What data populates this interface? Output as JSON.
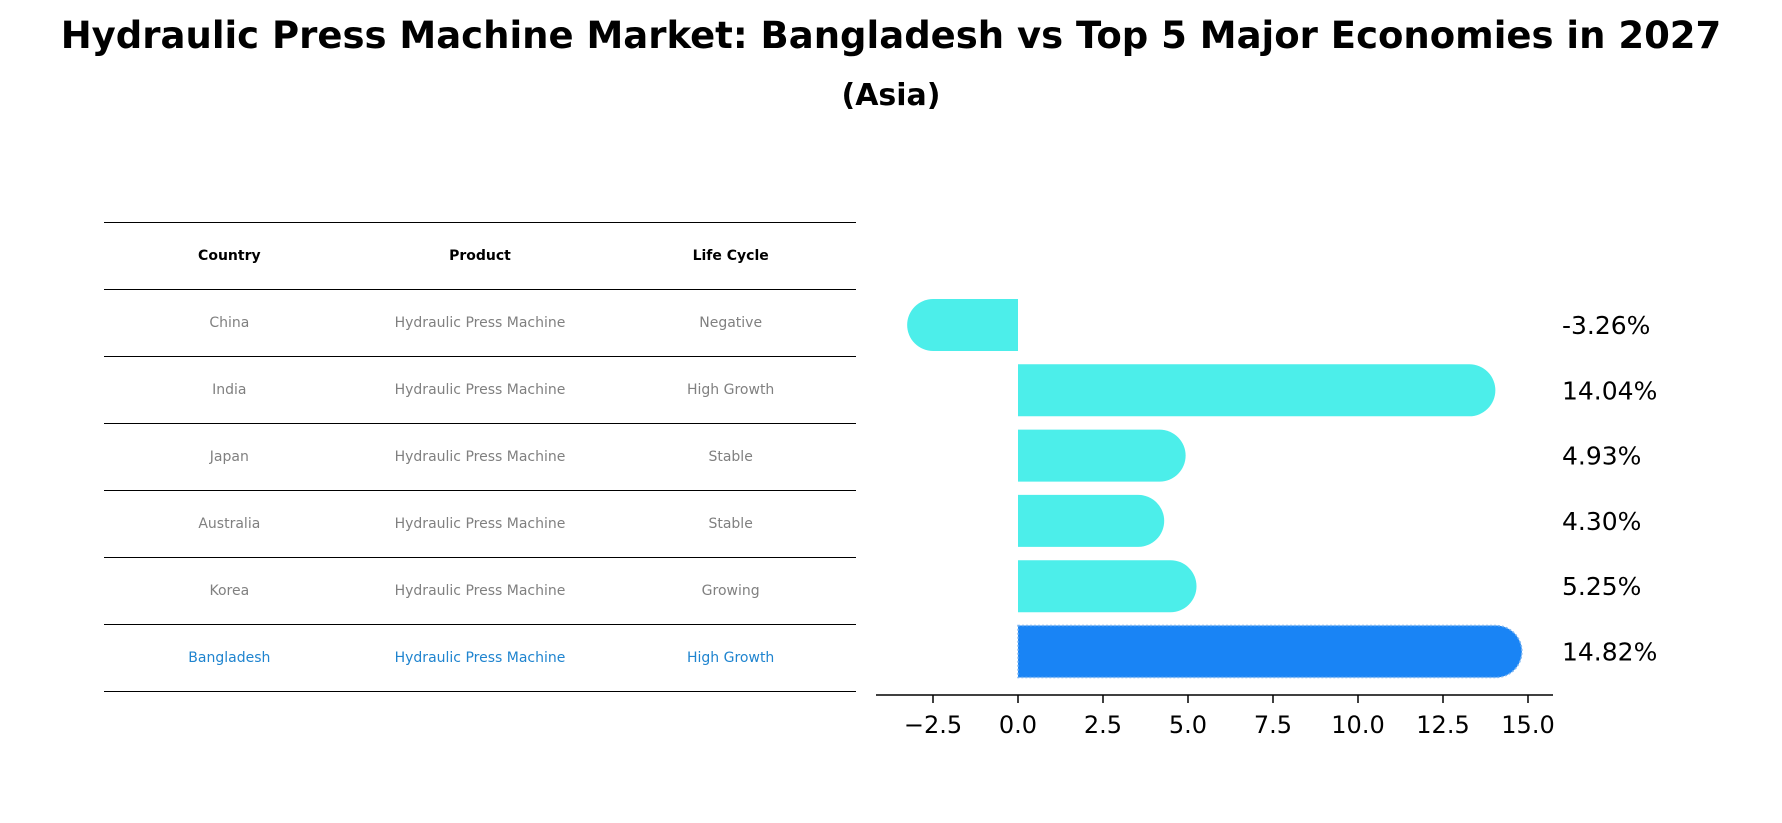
{
  "title": "Hydraulic Press Machine Market: Bangladesh vs Top 5 Major Economies in 2027",
  "subtitle": "(Asia)",
  "table": {
    "headers": [
      "Country",
      "Product",
      "Life Cycle"
    ],
    "rows": [
      {
        "country": "China",
        "product": "Hydraulic Press Machine",
        "life_cycle": "Negative"
      },
      {
        "country": "India",
        "product": "Hydraulic Press Machine",
        "life_cycle": "High Growth"
      },
      {
        "country": "Japan",
        "product": "Hydraulic Press Machine",
        "life_cycle": "Stable"
      },
      {
        "country": "Australia",
        "product": "Hydraulic Press Machine",
        "life_cycle": "Stable"
      },
      {
        "country": "Korea",
        "product": "Hydraulic Press Machine",
        "life_cycle": "Growing"
      },
      {
        "country": "Bangladesh",
        "product": "Hydraulic Press Machine",
        "life_cycle": "High Growth"
      }
    ],
    "highlight_row": "Bangladesh",
    "highlight_color": "#1f84cf",
    "text_color": "#808080"
  },
  "chart_data": {
    "type": "bar",
    "orientation": "horizontal",
    "categories": [
      "China",
      "India",
      "Japan",
      "Australia",
      "Korea",
      "Bangladesh"
    ],
    "values": [
      -3.26,
      14.04,
      4.93,
      4.3,
      5.25,
      14.82
    ],
    "value_labels": [
      "-3.26%",
      "14.04%",
      "4.93%",
      "4.30%",
      "5.25%",
      "14.82%"
    ],
    "xlim": [
      -4.2,
      15.7
    ],
    "xticks": [
      -2.5,
      0.0,
      2.5,
      5.0,
      7.5,
      10.0,
      12.5,
      15.0
    ],
    "xtick_labels": [
      "−2.5",
      "0.0",
      "2.5",
      "5.0",
      "7.5",
      "10.0",
      "12.5",
      "15.0"
    ],
    "bar_color": "#4ceeea",
    "highlight_color": "#1984f5",
    "highlight_category": "Bangladesh",
    "grid": false,
    "xlabel": "",
    "ylabel": ""
  }
}
